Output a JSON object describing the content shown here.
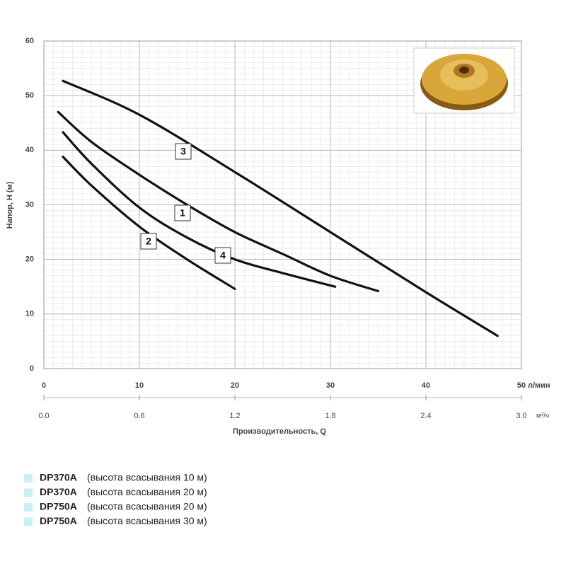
{
  "chart_data": {
    "type": "line",
    "ylabel": "Напор, H (м)",
    "xlabel": "Производительность, Q",
    "xunit": "л/мин",
    "x2unit": "м³/ч",
    "xlim": [
      0,
      50
    ],
    "xticks": [
      0,
      10,
      20,
      30,
      40,
      50
    ],
    "x2lim": [
      0,
      3
    ],
    "x2ticks": [
      {
        "value": 0,
        "label": "0.0"
      },
      0.6,
      1.2,
      1.8,
      2.4,
      {
        "value": 3,
        "label": "3.0"
      }
    ],
    "ylim": [
      0,
      60
    ],
    "yticks": [
      0,
      10,
      20,
      30,
      40,
      50,
      60
    ],
    "grid": true,
    "series": [
      {
        "label": "1",
        "name": "DP370A",
        "note": "(высота всасывания 10 м)",
        "color": "#111111",
        "x": [
          1.5,
          5,
          10,
          15,
          20,
          25,
          30,
          35
        ],
        "values": [
          47,
          41.5,
          35.5,
          30,
          25,
          21,
          17,
          14.2
        ]
      },
      {
        "label": "2",
        "name": "DP370A",
        "note": "(высота всасывания 20 м)",
        "color": "#111111",
        "x": [
          2,
          5,
          10,
          15,
          20
        ],
        "values": [
          38.8,
          33.5,
          26,
          20,
          14.6
        ]
      },
      {
        "label": "3",
        "name": "DP750A",
        "note": "(высота всасывания 20 м)",
        "color": "#111111",
        "x": [
          2,
          10,
          20,
          30,
          40,
          47.5
        ],
        "values": [
          52.7,
          46.5,
          36,
          25,
          14,
          6
        ]
      },
      {
        "label": "4",
        "name": "DP750A",
        "note": "(высота всасывания 30 м)",
        "color": "#111111",
        "x": [
          2,
          5,
          10,
          15,
          20,
          25,
          30.5
        ],
        "values": [
          43.3,
          37.5,
          29.5,
          24,
          20,
          17.5,
          15
        ]
      }
    ]
  }
}
